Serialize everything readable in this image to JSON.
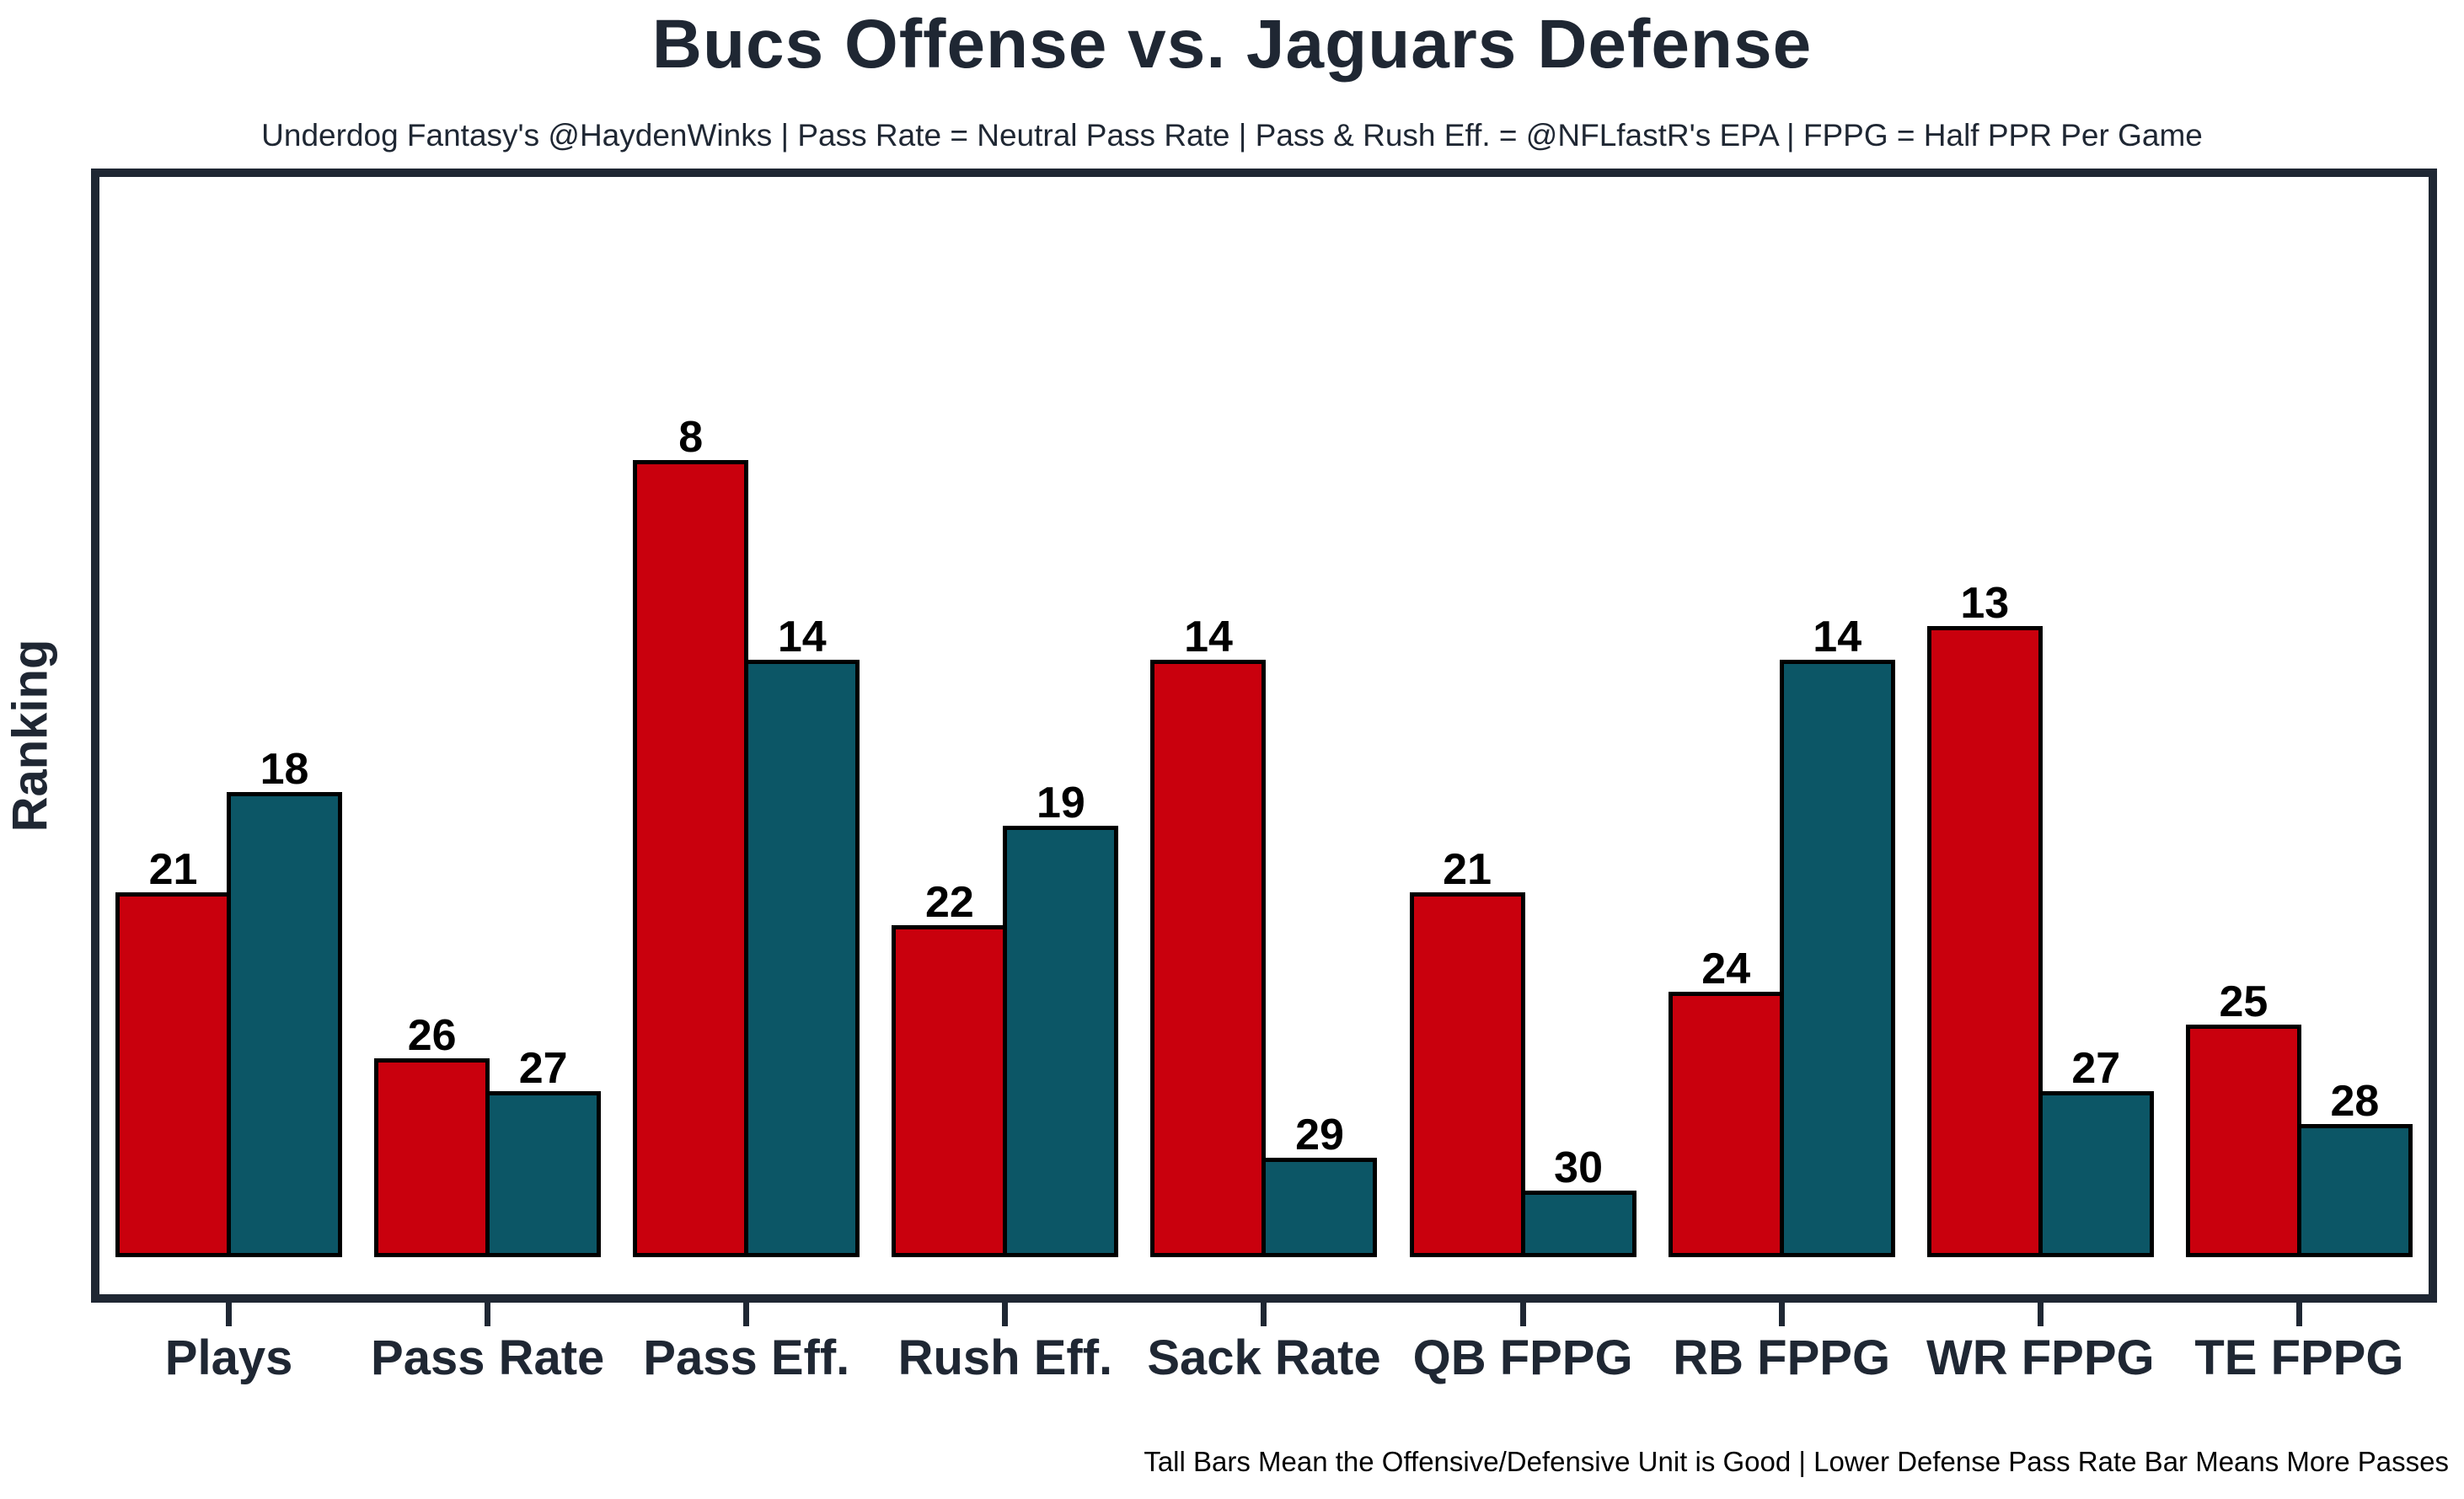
{
  "title": "Bucs Offense vs. Jaguars Defense",
  "subtitle": "Underdog Fantasy's @HaydenWinks | Pass Rate = Neutral Pass Rate | Pass & Rush Eff. = @NFLfastR's EPA | FPPG = Half PPR Per Game",
  "footnote": "Tall Bars Mean the Offensive/Defensive Unit is Good | Lower Defense Pass Rate Bar Means More Passes",
  "y_axis": {
    "label": "Ranking"
  },
  "colors": {
    "offense_red": "#C9000D",
    "defense_teal": "#0C5666",
    "axis_navy": "#1F2733",
    "bar_outline": "#000000",
    "value_label": "#000000",
    "background": "#FFFFFF"
  },
  "chart_data": {
    "type": "bar",
    "title": "Bucs Offense vs. Jaguars Defense",
    "xlabel": "",
    "ylabel": "Ranking",
    "categories": [
      "Plays",
      "Pass Rate",
      "Pass Eff.",
      "Rush Eff.",
      "Sack Rate",
      "QB FPPG",
      "RB FPPG",
      "WR FPPG",
      "TE FPPG"
    ],
    "series": [
      {
        "name": "Bucs Offense",
        "color": "#C9000D",
        "values": [
          21,
          26,
          8,
          22,
          14,
          21,
          24,
          13,
          25
        ]
      },
      {
        "name": "Jaguars Defense",
        "color": "#0C5666",
        "values": [
          18,
          27,
          14,
          19,
          29,
          30,
          14,
          27,
          28
        ]
      }
    ],
    "value_encoding": "values are NFL rankings (1 = best of 32); bar height is proportional to (32 - ranking), so lower ranking numbers draw taller bars",
    "ylim": [
      0,
      34
    ],
    "grid": false,
    "legend_position": "none",
    "y_ticks_shown": false
  }
}
